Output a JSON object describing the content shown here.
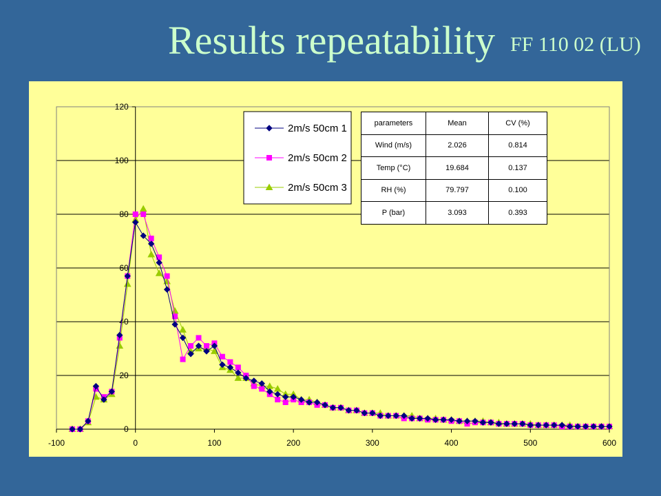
{
  "page": {
    "title": "Results repeatability",
    "subtitle": "FF 110 02 (LU)"
  },
  "table": {
    "headers": [
      "parameters",
      "Mean",
      "CV (%)"
    ],
    "rows": [
      [
        "Wind (m/s)",
        "2.026",
        "0.814"
      ],
      [
        "Temp (°C)",
        "19.684",
        "0.137"
      ],
      [
        "RH (%)",
        "79.797",
        "0.100"
      ],
      [
        "P (bar)",
        "3.093",
        "0.393"
      ]
    ]
  },
  "chart_data": {
    "type": "line",
    "title": "",
    "xlabel": "",
    "ylabel": "",
    "xlim": [
      -100,
      600
    ],
    "ylim": [
      0,
      120
    ],
    "xticks": [
      -100,
      0,
      100,
      200,
      300,
      400,
      500,
      600
    ],
    "xtick_labels": [
      "-100",
      "0",
      "100",
      "200",
      "300",
      "400",
      "500",
      "600"
    ],
    "yticks": [
      0,
      20,
      40,
      60,
      80,
      100,
      120
    ],
    "ytick_labels": [
      "0",
      "20",
      "40",
      "60",
      "80",
      "100",
      "120"
    ],
    "grid": "horizontal",
    "legend": "top-center",
    "x": [
      -80,
      -70,
      -60,
      -50,
      -40,
      -30,
      -20,
      -10,
      0,
      10,
      20,
      30,
      40,
      50,
      60,
      70,
      80,
      90,
      100,
      110,
      120,
      130,
      140,
      150,
      160,
      170,
      180,
      190,
      200,
      210,
      220,
      230,
      240,
      250,
      260,
      270,
      280,
      290,
      300,
      310,
      320,
      330,
      340,
      350,
      360,
      370,
      380,
      390,
      400,
      410,
      420,
      430,
      440,
      450,
      460,
      470,
      480,
      490,
      500,
      510,
      520,
      530,
      540,
      550,
      560,
      570,
      580,
      590,
      600
    ],
    "series": [
      {
        "name": "2m/s 50cm 1",
        "color": "#000080",
        "marker": "diamond",
        "values": [
          0,
          0,
          3,
          16,
          11,
          14,
          35,
          57,
          77,
          72,
          69,
          62,
          52,
          39,
          34,
          28,
          31,
          29,
          31,
          24,
          23,
          21,
          19,
          18,
          17,
          14,
          13,
          12,
          12,
          11,
          10,
          10,
          9,
          8,
          8,
          7,
          7,
          6,
          6,
          5,
          5,
          5,
          5,
          4,
          4,
          4,
          3.5,
          3.5,
          3.5,
          3,
          3,
          3,
          2.5,
          2.5,
          2,
          2,
          2,
          2,
          1.5,
          1.5,
          1.5,
          1.5,
          1.5,
          1,
          1,
          1,
          1,
          1,
          1
        ]
      },
      {
        "name": "2m/s 50cm 2",
        "color": "#ff00ff",
        "marker": "square",
        "values": [
          0,
          0,
          3,
          15,
          12,
          14,
          34,
          57,
          80,
          80,
          71,
          64,
          57,
          42,
          26,
          31,
          34,
          31,
          32,
          27,
          25,
          23,
          20,
          16,
          15,
          13,
          11,
          10,
          11,
          10,
          10,
          9,
          9,
          8,
          8,
          7,
          7,
          6,
          6,
          5,
          5,
          5,
          4,
          4,
          4,
          3.5,
          3.5,
          3.5,
          3,
          3,
          2,
          2.5,
          2.5,
          2.5,
          2,
          2,
          2,
          2,
          1.5,
          1.5,
          1.5,
          1.5,
          1,
          1,
          1,
          1,
          1,
          1,
          1
        ]
      },
      {
        "name": "2m/s 50cm 3",
        "color": "#99cc00",
        "marker": "triangle",
        "values": [
          0,
          0,
          2.5,
          12,
          11,
          13,
          31,
          54,
          78,
          82,
          65,
          58,
          55,
          44,
          37,
          29,
          30,
          30,
          29,
          23,
          22,
          19,
          19,
          17,
          16,
          16,
          15,
          13,
          13,
          11,
          11,
          10,
          9,
          8,
          8,
          7,
          7,
          6,
          6,
          6,
          5,
          5,
          5,
          5,
          4,
          4,
          4,
          3.5,
          3.5,
          3,
          3,
          3,
          3,
          2.5,
          2.5,
          2,
          2,
          2,
          2,
          1.5,
          1.5,
          1.5,
          1.5,
          1.5,
          1,
          1,
          1,
          1,
          1
        ]
      }
    ]
  }
}
